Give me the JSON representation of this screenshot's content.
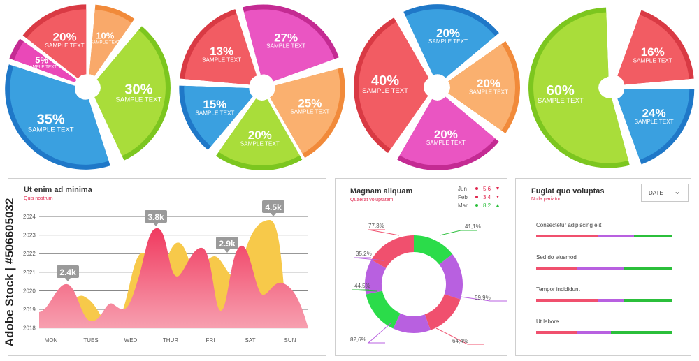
{
  "pies": [
    {
      "slices": [
        {
          "value": "10%",
          "label": "SAMPLE TEXT",
          "color": "#f9a96a",
          "edge": "#f18a3a"
        },
        {
          "value": "30%",
          "label": "SAMPLE TEXT",
          "color": "#a9dd3a",
          "edge": "#7cc61f"
        },
        {
          "value": "35%",
          "label": "SAMPLE TEXT",
          "color": "#3aa0e0",
          "edge": "#1f78c8"
        },
        {
          "value": "5%",
          "label": "SAMPLE TEXT",
          "color": "#ea48b8",
          "edge": "#c42b93"
        },
        {
          "value": "20%",
          "label": "SAMPLE TEXT",
          "color": "#f25c63",
          "edge": "#d93a44"
        }
      ]
    },
    {
      "slices": [
        {
          "value": "27%",
          "label": "SAMPLE TEXT",
          "color": "#ea55c2",
          "edge": "#c42b93"
        },
        {
          "value": "25%",
          "label": "SAMPLE TEXT",
          "color": "#fab06f",
          "edge": "#f18a3a"
        },
        {
          "value": "20%",
          "label": "SAMPLE TEXT",
          "color": "#a9dd3a",
          "edge": "#7cc61f"
        },
        {
          "value": "15%",
          "label": "SAMPLE TEXT",
          "color": "#3aa0e0",
          "edge": "#1f78c8"
        },
        {
          "value": "13%",
          "label": "SAMPLE TEXT",
          "color": "#f25c63",
          "edge": "#d93a44"
        }
      ]
    },
    {
      "slices": [
        {
          "value": "20%",
          "label": "SAMPLE TEXT",
          "color": "#3aa0e0",
          "edge": "#1f78c8"
        },
        {
          "value": "20%",
          "label": "SAMPLE TEXT",
          "color": "#fab06f",
          "edge": "#f18a3a"
        },
        {
          "value": "20%",
          "label": "SAMPLE TEXT",
          "color": "#ea55c2",
          "edge": "#c42b93"
        },
        {
          "value": "40%",
          "label": "SAMPLE TEXT",
          "color": "#f25c63",
          "edge": "#d93a44"
        }
      ]
    },
    {
      "slices": [
        {
          "value": "16%",
          "label": "SAMPLE TEXT",
          "color": "#f25c63",
          "edge": "#d93a44"
        },
        {
          "value": "24%",
          "label": "SAMPLE TEXT",
          "color": "#3aa0e0",
          "edge": "#1f78c8"
        },
        {
          "value": "60%",
          "label": "SAMPLE TEXT",
          "color": "#a9dd3a",
          "edge": "#7cc61f"
        }
      ]
    }
  ],
  "area_panel": {
    "title": "Ut enim ad minima",
    "subtitle": "Quis nostrum",
    "y_ticks": [
      "2024",
      "2023",
      "2022",
      "2021",
      "2020",
      "2019",
      "2018"
    ],
    "x_ticks": [
      "MON",
      "TUES",
      "WED",
      "THUR",
      "FRI",
      "SAT",
      "SUN"
    ],
    "callouts": [
      "2.4k",
      "3.8k",
      "2.9k",
      "4.5k"
    ]
  },
  "donut_panel": {
    "title": "Magnam aliquam",
    "subtitle": "Quaerat voluptatem",
    "legend": [
      {
        "month": "Jun",
        "dot": "#e0284f",
        "value": "5,6",
        "trend": "down"
      },
      {
        "month": "Feb",
        "dot": "#e0284f",
        "value": "3,4",
        "trend": "down"
      },
      {
        "month": "Mar",
        "dot": "#2bbf3b",
        "value": "8,2",
        "trend": "up"
      }
    ],
    "labels": [
      "41,1%",
      "59,9%",
      "64,4%",
      "82,6%",
      "44,5%",
      "35,2%",
      "77,3%"
    ]
  },
  "bars_panel": {
    "title": "Fugiat quo voluptas",
    "subtitle": "Nulla pariatur",
    "date_label": "DATE",
    "rows": [
      {
        "label": "Consectetur adipiscing elit",
        "segments": [
          0.46,
          0.26,
          0.28
        ]
      },
      {
        "label": "Sed do eiusmod",
        "segments": [
          0.3,
          0.35,
          0.35
        ]
      },
      {
        "label": "Tempor incididunt",
        "segments": [
          0.46,
          0.19,
          0.35
        ]
      },
      {
        "label": "Ut labore",
        "segments": [
          0.3,
          0.25,
          0.45
        ]
      }
    ]
  },
  "chart_data": [
    {
      "type": "pie",
      "values": [
        10,
        30,
        35,
        5,
        20
      ],
      "labels": [
        "SAMPLE TEXT",
        "SAMPLE TEXT",
        "SAMPLE TEXT",
        "SAMPLE TEXT",
        "SAMPLE TEXT"
      ]
    },
    {
      "type": "pie",
      "values": [
        27,
        25,
        20,
        15,
        13
      ],
      "labels": [
        "SAMPLE TEXT",
        "SAMPLE TEXT",
        "SAMPLE TEXT",
        "SAMPLE TEXT",
        "SAMPLE TEXT"
      ]
    },
    {
      "type": "pie",
      "values": [
        20,
        20,
        20,
        40
      ],
      "labels": [
        "SAMPLE TEXT",
        "SAMPLE TEXT",
        "SAMPLE TEXT",
        "SAMPLE TEXT"
      ]
    },
    {
      "type": "pie",
      "values": [
        16,
        24,
        60
      ],
      "labels": [
        "SAMPLE TEXT",
        "SAMPLE TEXT",
        "SAMPLE TEXT"
      ]
    },
    {
      "type": "area",
      "title": "Ut enim ad minima",
      "subtitle": "Quis nostrum",
      "categories": [
        "MON",
        "TUES",
        "WED",
        "THUR",
        "FRI",
        "SAT",
        "SUN"
      ],
      "y_ticks": [
        "2018",
        "2019",
        "2020",
        "2021",
        "2022",
        "2023",
        "2024"
      ],
      "annotations": [
        "2.4k",
        "3.8k",
        "2.9k",
        "4.5k"
      ]
    },
    {
      "type": "pie",
      "subtype": "donut",
      "title": "Magnam aliquam",
      "subtitle": "Quaerat voluptatem",
      "labels": [
        "41,1%",
        "59,9%",
        "64,4%",
        "82,6%",
        "44,5%",
        "35,2%",
        "77,3%"
      ]
    },
    {
      "type": "bar",
      "subtype": "stacked-horizontal",
      "title": "Fugiat quo voluptas",
      "subtitle": "Nulla pariatur",
      "categories": [
        "Consectetur adipiscing elit",
        "Sed do eiusmod",
        "Tempor incididunt",
        "Ut labore"
      ],
      "series_colors": [
        "#f0506e",
        "#b86ad8",
        "#2bbf3b"
      ],
      "values": [
        [
          0.46,
          0.26,
          0.28
        ],
        [
          0.3,
          0.35,
          0.35
        ],
        [
          0.46,
          0.19,
          0.35
        ],
        [
          0.3,
          0.25,
          0.45
        ]
      ]
    }
  ],
  "watermark": "Adobe Stock | #506605032"
}
